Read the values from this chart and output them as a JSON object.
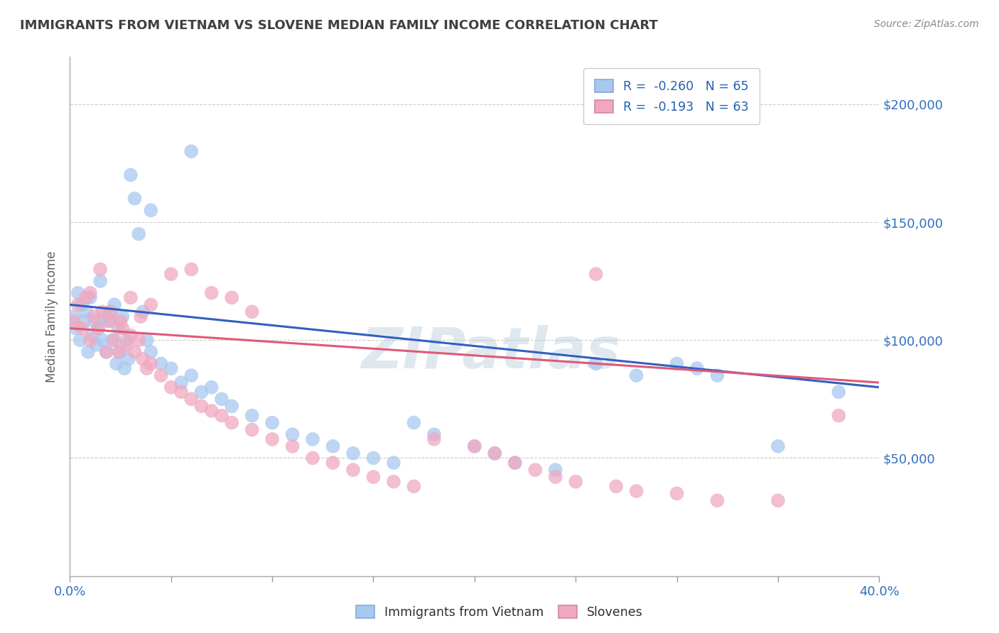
{
  "title": "IMMIGRANTS FROM VIETNAM VS SLOVENE MEDIAN FAMILY INCOME CORRELATION CHART",
  "source": "Source: ZipAtlas.com",
  "ylabel": "Median Family Income",
  "watermark": "ZIPatlas",
  "xlim": [
    0.0,
    0.4
  ],
  "ylim": [
    0,
    220000
  ],
  "yticks": [
    0,
    50000,
    100000,
    150000,
    200000
  ],
  "ytick_labels": [
    "",
    "$50,000",
    "$100,000",
    "$150,000",
    "$200,000"
  ],
  "blue_R": -0.26,
  "blue_N": 65,
  "pink_R": -0.193,
  "pink_N": 63,
  "blue_color": "#a8c8f0",
  "pink_color": "#f0a8c0",
  "blue_line_color": "#3060c0",
  "pink_line_color": "#e05878",
  "background_color": "#ffffff",
  "title_color": "#404040",
  "title_fontsize": 13,
  "axis_label_color": "#3070c0",
  "legend_blue_label": "R =  -0.260   N = 65",
  "legend_pink_label": "R =  -0.193   N = 63",
  "blue_scatter_x": [
    0.002,
    0.003,
    0.004,
    0.005,
    0.006,
    0.007,
    0.008,
    0.009,
    0.01,
    0.011,
    0.012,
    0.013,
    0.014,
    0.015,
    0.016,
    0.017,
    0.018,
    0.019,
    0.02,
    0.021,
    0.022,
    0.023,
    0.024,
    0.025,
    0.026,
    0.027,
    0.028,
    0.029,
    0.03,
    0.032,
    0.034,
    0.036,
    0.038,
    0.04,
    0.045,
    0.05,
    0.055,
    0.06,
    0.065,
    0.07,
    0.075,
    0.08,
    0.09,
    0.1,
    0.11,
    0.12,
    0.13,
    0.14,
    0.15,
    0.16,
    0.17,
    0.18,
    0.2,
    0.21,
    0.22,
    0.24,
    0.26,
    0.28,
    0.3,
    0.31,
    0.32,
    0.35,
    0.38,
    0.06,
    0.04
  ],
  "blue_scatter_y": [
    110000,
    105000,
    120000,
    100000,
    115000,
    108000,
    112000,
    95000,
    118000,
    102000,
    108000,
    98000,
    105000,
    125000,
    100000,
    110000,
    95000,
    108000,
    112000,
    100000,
    115000,
    90000,
    105000,
    95000,
    110000,
    88000,
    100000,
    92000,
    170000,
    160000,
    145000,
    112000,
    100000,
    95000,
    90000,
    88000,
    82000,
    85000,
    78000,
    80000,
    75000,
    72000,
    68000,
    65000,
    60000,
    58000,
    55000,
    52000,
    50000,
    48000,
    65000,
    60000,
    55000,
    52000,
    48000,
    45000,
    90000,
    85000,
    90000,
    88000,
    85000,
    55000,
    78000,
    180000,
    155000
  ],
  "pink_scatter_x": [
    0.002,
    0.004,
    0.006,
    0.008,
    0.01,
    0.012,
    0.014,
    0.016,
    0.018,
    0.02,
    0.022,
    0.024,
    0.026,
    0.028,
    0.03,
    0.032,
    0.034,
    0.036,
    0.038,
    0.04,
    0.045,
    0.05,
    0.055,
    0.06,
    0.065,
    0.07,
    0.075,
    0.08,
    0.09,
    0.1,
    0.11,
    0.12,
    0.13,
    0.14,
    0.15,
    0.16,
    0.17,
    0.18,
    0.2,
    0.21,
    0.22,
    0.23,
    0.24,
    0.25,
    0.26,
    0.27,
    0.28,
    0.3,
    0.32,
    0.35,
    0.38,
    0.01,
    0.015,
    0.02,
    0.025,
    0.03,
    0.035,
    0.04,
    0.05,
    0.06,
    0.07,
    0.08,
    0.09
  ],
  "pink_scatter_y": [
    108000,
    115000,
    105000,
    118000,
    100000,
    110000,
    105000,
    112000,
    95000,
    108000,
    100000,
    95000,
    105000,
    98000,
    102000,
    95000,
    100000,
    92000,
    88000,
    90000,
    85000,
    80000,
    78000,
    75000,
    72000,
    70000,
    68000,
    65000,
    62000,
    58000,
    55000,
    50000,
    48000,
    45000,
    42000,
    40000,
    38000,
    58000,
    55000,
    52000,
    48000,
    45000,
    42000,
    40000,
    128000,
    38000,
    36000,
    35000,
    32000,
    32000,
    68000,
    120000,
    130000,
    112000,
    108000,
    118000,
    110000,
    115000,
    128000,
    130000,
    120000,
    118000,
    112000
  ]
}
